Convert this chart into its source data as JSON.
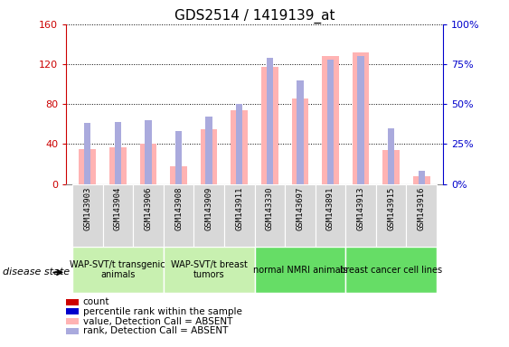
{
  "title": "GDS2514 / 1419139_at",
  "samples": [
    "GSM143903",
    "GSM143904",
    "GSM143906",
    "GSM143908",
    "GSM143909",
    "GSM143911",
    "GSM143330",
    "GSM143697",
    "GSM143891",
    "GSM143913",
    "GSM143915",
    "GSM143916"
  ],
  "absent_value_bars": [
    35,
    37,
    40,
    18,
    55,
    74,
    117,
    86,
    128,
    132,
    34,
    8
  ],
  "absent_rank_bars": [
    38,
    39,
    40,
    33,
    42,
    50,
    79,
    65,
    78,
    80,
    35,
    8
  ],
  "groups": [
    {
      "label": "WAP-SVT/t transgenic\nanimals",
      "start": 0,
      "end": 3,
      "color": "#c8f0b0"
    },
    {
      "label": "WAP-SVT/t breast\ntumors",
      "start": 3,
      "end": 6,
      "color": "#c8f0b0"
    },
    {
      "label": "normal NMRI animals",
      "start": 6,
      "end": 9,
      "color": "#66dd66"
    },
    {
      "label": "breast cancer cell lines",
      "start": 9,
      "end": 12,
      "color": "#66dd66"
    }
  ],
  "ylim_left": [
    0,
    160
  ],
  "ylim_right": [
    0,
    100
  ],
  "left_yticks": [
    0,
    40,
    80,
    120,
    160
  ],
  "right_yticks": [
    0,
    25,
    50,
    75,
    100
  ],
  "left_color": "#cc0000",
  "right_color": "#0000cc",
  "absent_value_color": "#ffb3b3",
  "absent_rank_color": "#aaaadd",
  "count_color": "#cc0000",
  "rank_color": "#0000cc",
  "grid_color": "black",
  "disease_state_label": "disease state",
  "legend": [
    {
      "color": "#cc0000",
      "label": "count"
    },
    {
      "color": "#0000cc",
      "label": "percentile rank within the sample"
    },
    {
      "color": "#ffb3b3",
      "label": "value, Detection Call = ABSENT"
    },
    {
      "color": "#aaaadd",
      "label": "rank, Detection Call = ABSENT"
    }
  ]
}
